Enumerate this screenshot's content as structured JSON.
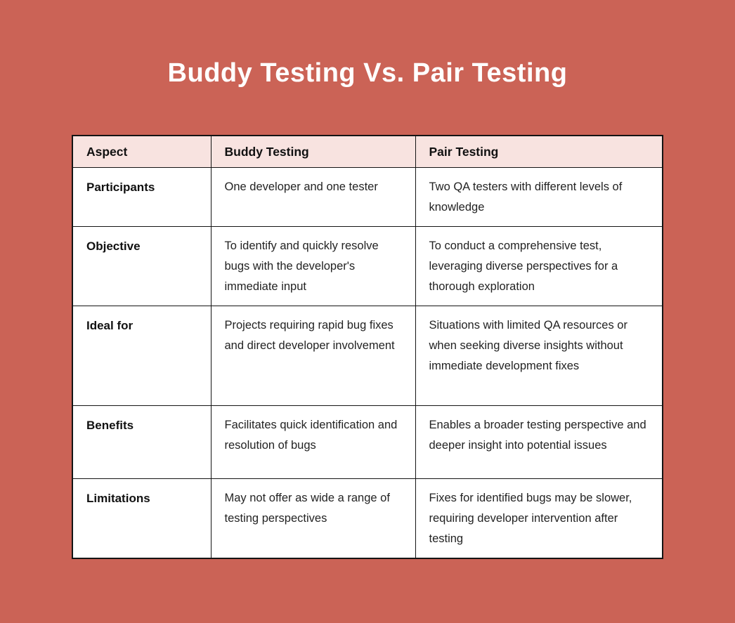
{
  "title": "Buddy Testing Vs. Pair Testing",
  "colors": {
    "background": "#cb6356",
    "table_header_bg": "#f8e3e0",
    "cell_bg": "#ffffff",
    "border": "#141414",
    "title_text": "#ffffff",
    "body_text": "#232323"
  },
  "table": {
    "headers": [
      "Aspect",
      "Buddy Testing",
      "Pair Testing"
    ],
    "rows": [
      {
        "aspect": "Participants",
        "buddy": "One developer and one tester",
        "pair": "Two QA testers with different levels of knowledge"
      },
      {
        "aspect": "Objective",
        "buddy": "To identify and quickly resolve bugs with the developer's immediate input",
        "pair": "To conduct a comprehensive test, leveraging diverse perspectives for a thorough exploration"
      },
      {
        "aspect": "Ideal for",
        "buddy": "Projects requiring rapid bug fixes and direct developer involvement",
        "pair": "Situations with limited QA resources or when seeking diverse insights without immediate development fixes"
      },
      {
        "aspect": "Benefits",
        "buddy": "Facilitates quick identification and resolution of bugs",
        "pair": "Enables a broader testing perspective and deeper insight into potential issues"
      },
      {
        "aspect": "Limitations",
        "buddy": "May not offer as wide a range of testing perspectives",
        "pair": "Fixes for identified bugs may be slower, requiring developer intervention after testing"
      }
    ]
  }
}
